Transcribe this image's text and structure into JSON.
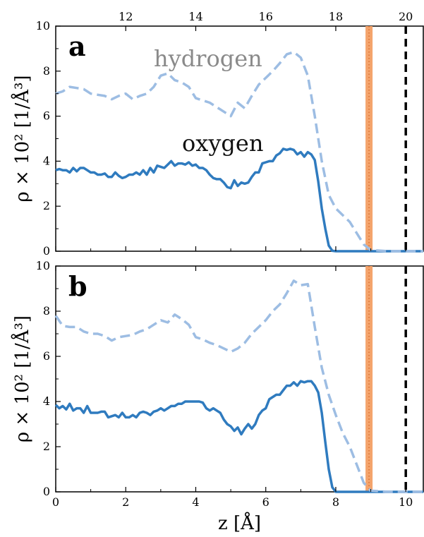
{
  "chart_data": {
    "type": "line",
    "xlabel": "z [Å]",
    "ylabel": "ρ × 10² [1/Å³]",
    "xlim": [
      0,
      10.5
    ],
    "ylim": [
      0,
      10
    ],
    "x_ticks": [
      "0",
      "2",
      "4",
      "6",
      "8",
      "10"
    ],
    "y_ticks": [
      "0",
      "2",
      "4",
      "6",
      "8",
      "10"
    ],
    "top_axis_ticks": [
      "12",
      "14",
      "16",
      "18",
      "20"
    ],
    "colors": {
      "oxygen": "#2f7bbf",
      "hydrogen": "#9dbde3",
      "orange_band": "#f4a46c",
      "orange_dots": "#e07b3c",
      "black_line": "#000000"
    },
    "vertical_markers": [
      {
        "x": 8.95,
        "style": "orange-band"
      },
      {
        "x": 10.0,
        "style": "black-dashed"
      }
    ],
    "panels": [
      {
        "letter": "a",
        "series_labels": {
          "hydrogen": "hydrogen",
          "oxygen": "oxygen"
        },
        "series": [
          {
            "name": "oxygen",
            "style": "solid",
            "x": [
              0,
              0.1,
              0.2,
              0.3,
              0.4,
              0.5,
              0.6,
              0.7,
              0.8,
              0.9,
              1.0,
              1.1,
              1.2,
              1.3,
              1.4,
              1.5,
              1.6,
              1.7,
              1.8,
              1.9,
              2.0,
              2.1,
              2.2,
              2.3,
              2.4,
              2.5,
              2.6,
              2.7,
              2.8,
              2.9,
              3.0,
              3.1,
              3.2,
              3.3,
              3.4,
              3.5,
              3.6,
              3.7,
              3.8,
              3.9,
              4.0,
              4.1,
              4.2,
              4.3,
              4.4,
              4.5,
              4.6,
              4.7,
              4.8,
              4.9,
              5.0,
              5.1,
              5.2,
              5.3,
              5.4,
              5.5,
              5.6,
              5.7,
              5.8,
              5.9,
              6.0,
              6.1,
              6.2,
              6.3,
              6.4,
              6.5,
              6.6,
              6.7,
              6.8,
              6.9,
              7.0,
              7.1,
              7.2,
              7.3,
              7.4,
              7.5,
              7.6,
              7.7,
              7.8,
              7.9,
              8.0,
              8.5,
              9.0,
              9.5,
              10.0,
              10.5
            ],
            "y": [
              3.6,
              3.65,
              3.6,
              3.6,
              3.5,
              3.7,
              3.55,
              3.7,
              3.7,
              3.6,
              3.5,
              3.5,
              3.4,
              3.4,
              3.45,
              3.3,
              3.3,
              3.5,
              3.35,
              3.25,
              3.3,
              3.4,
              3.4,
              3.5,
              3.4,
              3.6,
              3.4,
              3.7,
              3.5,
              3.8,
              3.75,
              3.7,
              3.85,
              4.0,
              3.8,
              3.9,
              3.9,
              3.85,
              3.95,
              3.8,
              3.85,
              3.7,
              3.7,
              3.6,
              3.4,
              3.25,
              3.2,
              3.2,
              3.05,
              2.85,
              2.8,
              3.15,
              2.9,
              3.05,
              3.0,
              3.05,
              3.3,
              3.5,
              3.5,
              3.9,
              3.95,
              4.0,
              4.0,
              4.25,
              4.35,
              4.55,
              4.5,
              4.55,
              4.5,
              4.3,
              4.4,
              4.2,
              4.4,
              4.3,
              4.05,
              3.1,
              1.9,
              1.0,
              0.25,
              0.02,
              0,
              0,
              0,
              0,
              0,
              0
            ]
          },
          {
            "name": "hydrogen",
            "style": "dashed",
            "x": [
              0,
              0.2,
              0.4,
              0.6,
              0.8,
              1.0,
              1.2,
              1.4,
              1.6,
              1.8,
              2.0,
              2.2,
              2.4,
              2.6,
              2.8,
              3.0,
              3.2,
              3.4,
              3.6,
              3.8,
              4.0,
              4.2,
              4.4,
              4.6,
              4.8,
              5.0,
              5.2,
              5.4,
              5.6,
              5.8,
              6.0,
              6.2,
              6.4,
              6.6,
              6.8,
              7.0,
              7.2,
              7.4,
              7.6,
              7.8,
              8.0,
              8.2,
              8.4,
              8.6,
              8.8,
              9.0,
              9.5,
              10.0,
              10.5
            ],
            "y": [
              7.0,
              7.1,
              7.3,
              7.25,
              7.2,
              7.0,
              6.95,
              6.9,
              6.75,
              6.9,
              7.0,
              6.75,
              6.9,
              7.0,
              7.3,
              7.8,
              7.9,
              7.6,
              7.5,
              7.3,
              6.8,
              6.7,
              6.6,
              6.4,
              6.2,
              6.0,
              6.6,
              6.35,
              6.9,
              7.4,
              7.7,
              8.0,
              8.35,
              8.75,
              8.85,
              8.6,
              7.8,
              6.0,
              4.0,
              2.5,
              1.9,
              1.6,
              1.3,
              0.8,
              0.3,
              0.05,
              0,
              0,
              0
            ]
          }
        ]
      },
      {
        "letter": "b",
        "series_labels": {
          "hydrogen": "",
          "oxygen": ""
        },
        "series": [
          {
            "name": "oxygen",
            "style": "solid",
            "x": [
              0,
              0.1,
              0.2,
              0.3,
              0.4,
              0.5,
              0.6,
              0.7,
              0.8,
              0.9,
              1.0,
              1.1,
              1.2,
              1.3,
              1.4,
              1.5,
              1.6,
              1.7,
              1.8,
              1.9,
              2.0,
              2.1,
              2.2,
              2.3,
              2.4,
              2.5,
              2.6,
              2.7,
              2.8,
              2.9,
              3.0,
              3.1,
              3.2,
              3.3,
              3.4,
              3.5,
              3.6,
              3.7,
              3.8,
              3.9,
              4.0,
              4.1,
              4.2,
              4.3,
              4.4,
              4.5,
              4.6,
              4.7,
              4.8,
              4.9,
              5.0,
              5.1,
              5.2,
              5.3,
              5.4,
              5.5,
              5.6,
              5.7,
              5.8,
              5.9,
              6.0,
              6.1,
              6.2,
              6.3,
              6.4,
              6.5,
              6.6,
              6.7,
              6.8,
              6.9,
              7.0,
              7.1,
              7.2,
              7.3,
              7.4,
              7.5,
              7.6,
              7.7,
              7.8,
              7.9,
              8.0,
              8.5,
              9.0,
              9.5,
              10.0,
              10.5
            ],
            "y": [
              3.85,
              3.7,
              3.8,
              3.65,
              3.9,
              3.6,
              3.7,
              3.7,
              3.5,
              3.8,
              3.5,
              3.5,
              3.5,
              3.55,
              3.55,
              3.3,
              3.35,
              3.4,
              3.3,
              3.5,
              3.3,
              3.3,
              3.4,
              3.3,
              3.5,
              3.55,
              3.5,
              3.4,
              3.55,
              3.6,
              3.7,
              3.6,
              3.7,
              3.8,
              3.8,
              3.9,
              3.9,
              4.0,
              4.0,
              4.0,
              4.0,
              4.0,
              3.95,
              3.7,
              3.6,
              3.7,
              3.6,
              3.5,
              3.2,
              3.0,
              2.9,
              2.7,
              2.85,
              2.55,
              2.8,
              3.0,
              2.8,
              3.0,
              3.4,
              3.6,
              3.7,
              4.1,
              4.2,
              4.3,
              4.3,
              4.5,
              4.7,
              4.7,
              4.85,
              4.7,
              4.9,
              4.85,
              4.9,
              4.9,
              4.7,
              4.4,
              3.5,
              2.2,
              1.0,
              0.2,
              0,
              0,
              0,
              0,
              0,
              0
            ]
          },
          {
            "name": "hydrogen",
            "style": "dashed",
            "x": [
              0,
              0.2,
              0.4,
              0.6,
              0.8,
              1.0,
              1.2,
              1.4,
              1.6,
              1.8,
              2.0,
              2.2,
              2.4,
              2.6,
              2.8,
              3.0,
              3.2,
              3.4,
              3.6,
              3.8,
              4.0,
              4.2,
              4.4,
              4.6,
              4.8,
              5.0,
              5.2,
              5.4,
              5.6,
              5.8,
              6.0,
              6.2,
              6.4,
              6.6,
              6.8,
              7.0,
              7.2,
              7.4,
              7.6,
              7.8,
              8.0,
              8.2,
              8.4,
              8.6,
              8.8,
              9.0,
              9.5,
              10.0,
              10.5
            ],
            "y": [
              7.8,
              7.35,
              7.3,
              7.3,
              7.1,
              7.0,
              7.0,
              6.9,
              6.7,
              6.85,
              6.9,
              6.95,
              7.1,
              7.2,
              7.4,
              7.6,
              7.5,
              7.85,
              7.65,
              7.4,
              6.85,
              6.75,
              6.6,
              6.5,
              6.35,
              6.2,
              6.35,
              6.6,
              7.0,
              7.3,
              7.6,
              8.0,
              8.3,
              8.8,
              9.35,
              9.15,
              9.2,
              7.3,
              5.5,
              4.3,
              3.4,
              2.6,
              2.0,
              1.2,
              0.4,
              0.05,
              0,
              0,
              0
            ]
          }
        ]
      }
    ]
  }
}
